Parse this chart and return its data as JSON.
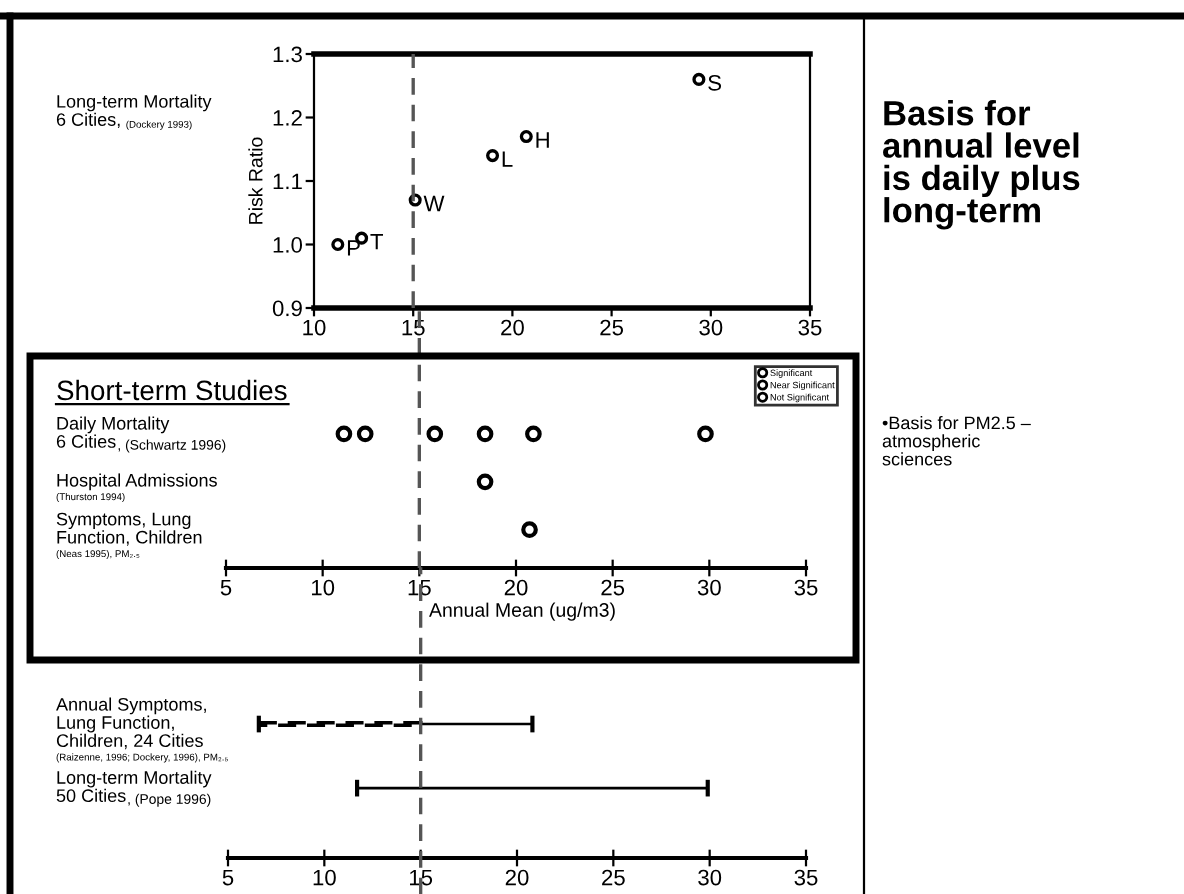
{
  "chart_data": [
    {
      "type": "scatter",
      "ylabel": "Risk Ratio",
      "x": [
        11.2,
        12.4,
        15.1,
        19.0,
        20.7,
        29.4
      ],
      "values": [
        1.0,
        1.01,
        1.07,
        1.14,
        1.17,
        1.26
      ],
      "value_labels": [
        "P",
        "T",
        "W",
        "L",
        "H",
        "S"
      ],
      "color": "#000000",
      "marker": "circle",
      "xlim": [
        10,
        35
      ],
      "xticks": [
        10,
        15,
        20,
        25,
        30,
        35
      ],
      "ylim": [
        0.9,
        1.3
      ],
      "yticks": [
        0.9,
        {
          "value": 1.0,
          "label": "1.0"
        },
        1.1,
        1.2,
        1.3
      ],
      "ref_lines": [
        {
          "axis": "x",
          "value": 15,
          "color": "#555555",
          "line_style": "dashed"
        }
      ],
      "annotations": [
        "Long-term Mortality\n6 Cities,",
        "(Dockery 1993)"
      ]
    },
    {
      "type": "scatter",
      "orientation": "horizontal",
      "title": "Short-term Studies",
      "xlabel": "Annual Mean (ug/m3)",
      "categories": [
        "Daily Mortality\n6 Cities",
        "Hospital Admissions",
        "Symptoms, Lung\nFunction, Children"
      ],
      "series": [
        {
          "color": "#000000",
          "values": [
            11.1,
            18.4,
            20.7
          ]
        },
        {
          "color": "#000000",
          "values": [
            12.2,
            null,
            null
          ]
        },
        {
          "color": "#000000",
          "values": [
            15.8,
            null,
            null
          ]
        },
        {
          "color": "#000000",
          "values": [
            18.4,
            null,
            null
          ]
        },
        {
          "color": "#000000",
          "values": [
            20.9,
            null,
            null
          ]
        },
        {
          "color": "#000000",
          "values": [
            29.8,
            null,
            null
          ]
        }
      ],
      "marker": "circle",
      "xlim": [
        5,
        35
      ],
      "xticks": [
        5,
        10,
        15,
        20,
        25,
        30,
        35
      ],
      "ref_lines": [
        {
          "axis": "x",
          "value": 15,
          "color": "#555555",
          "line_style": "dashed"
        }
      ],
      "annotations": [
        ", (Schwartz 1996)",
        "(Thurston 1994)",
        "(Neas 1995), PM₂.₅",
        "Significant",
        "Near Significant",
        "Not Significant"
      ]
    },
    {
      "type": "bar",
      "orientation": "horizontal",
      "categories": [
        "Annual Symptoms,\nLung Function,\nChildren, 24 Cities",
        "Long-term Mortality\n50 Cities"
      ],
      "series": [
        {
          "color": "#000000",
          "line_style": "dashed",
          "base": [
            6.6,
            null
          ],
          "values": [
            8.4,
            null
          ]
        },
        {
          "color": "#000000",
          "line_style": "solid",
          "base": [
            15,
            11.7
          ],
          "values": [
            5.8,
            18.2
          ]
        }
      ],
      "xlim": [
        5,
        35
      ],
      "xticks": [
        5,
        10,
        15,
        20,
        25,
        30,
        35
      ],
      "ref_lines": [
        {
          "axis": "x",
          "value": 15,
          "color": "#555555",
          "line_style": "dashed"
        }
      ],
      "annotations": [
        "(Raizenne, 1996; Dockery, 1996), PM₂.₅",
        ", (Pope 1996)"
      ]
    },
    {
      "type": "other",
      "title": "Basis for\nannual level\nis daily plus\nlong-term",
      "annotations": [
        "•Basis for PM2.5 –\natmospheric\nsciences"
      ]
    }
  ]
}
